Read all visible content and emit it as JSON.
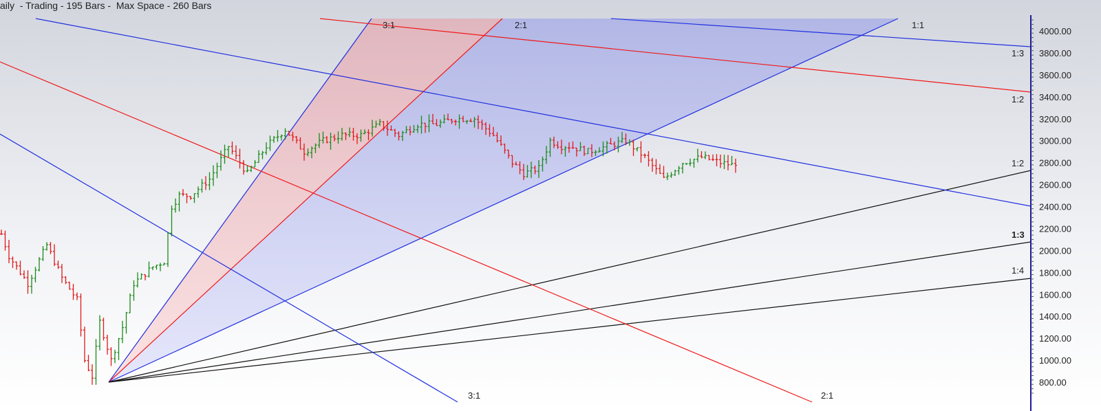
{
  "header": {
    "title": "aily  - Trading - 195 Bars -  Max Space - 260 Bars"
  },
  "chart_data": {
    "type": "ohlc-bar with gann fan",
    "yaxis": {
      "ticks": [
        4000,
        3800,
        3600,
        3400,
        3200,
        3000,
        2800,
        2600,
        2400,
        2200,
        2000,
        1800,
        1600,
        1400,
        1200,
        1000,
        800
      ],
      "tick_labels": [
        "4000.00",
        "3800.00",
        "3600.00",
        "3400.00",
        "3200.00",
        "3000.00",
        "2800.00",
        "2600.00",
        "2400.00",
        "2200.00",
        "2000.00",
        "1800.00",
        "1600.00",
        "1400.00",
        "1200.00",
        "1000.00",
        "800.00"
      ],
      "range": [
        700,
        4100
      ]
    },
    "price_path": {
      "bar": [
        0,
        2,
        7,
        12,
        16,
        20,
        22,
        24,
        26,
        29,
        32,
        35,
        40,
        43,
        45,
        47,
        50,
        55,
        60,
        65,
        70,
        75,
        80,
        85,
        90,
        95,
        100,
        105,
        110,
        115,
        120,
        125,
        130,
        135,
        138,
        142,
        145,
        148,
        150,
        155,
        160,
        165,
        170,
        175,
        180,
        185,
        190,
        193,
        194
      ],
      "close": [
        2150,
        1950,
        1700,
        2050,
        1750,
        1550,
        1000,
        850,
        1350,
        1000,
        1300,
        1700,
        1850,
        1900,
        2400,
        2500,
        2500,
        2650,
        2950,
        2700,
        2950,
        3100,
        2900,
        3000,
        3050,
        3050,
        3150,
        3050,
        3150,
        3150,
        3200,
        3200,
        3050,
        2800,
        2700,
        2750,
        3000,
        2950,
        2950,
        2900,
        2950,
        3000,
        2850,
        2650,
        2800,
        2850,
        2800,
        2780,
        2800
      ]
    },
    "colors": {
      "up": "#1a8a1a",
      "down": "#e01818",
      "blue": "#1f2fe0",
      "red": "#f01818",
      "black": "#111111",
      "axis": "#1a1a9a",
      "fill_red": "#f4b8b8",
      "fill_blue": "#b8bcf0"
    },
    "fan_labels": {
      "top": [
        "3:1",
        "2:1",
        "1:1"
      ],
      "right": [
        "1:3",
        "1:2",
        "1:2",
        "1:3",
        "1:4"
      ],
      "bottom": [
        "3:1",
        "2:1"
      ]
    }
  }
}
